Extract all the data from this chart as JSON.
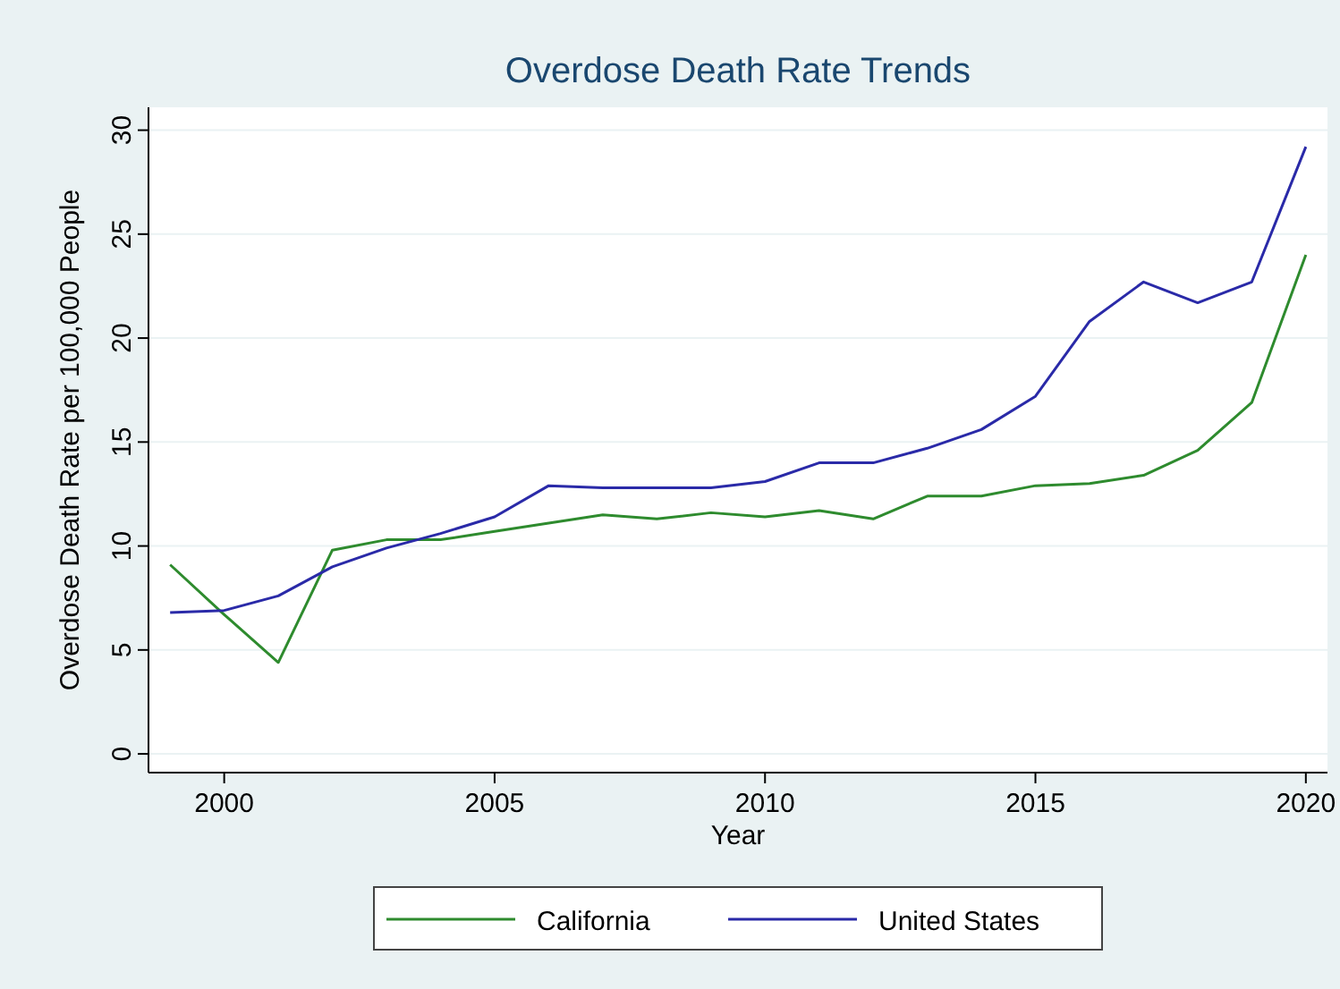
{
  "chart_data": {
    "type": "line",
    "title": "Overdose Death Rate Trends",
    "xlabel": "Year",
    "ylabel": "Overdose Death Rate per 100,000 People",
    "x": [
      1999,
      2000,
      2001,
      2002,
      2003,
      2004,
      2005,
      2006,
      2007,
      2008,
      2009,
      2010,
      2011,
      2012,
      2013,
      2014,
      2015,
      2016,
      2017,
      2018,
      2019,
      2020
    ],
    "series": [
      {
        "name": "California",
        "color": "#2e8b2e",
        "values": [
          9.1,
          6.7,
          4.4,
          9.8,
          10.3,
          10.3,
          10.7,
          11.1,
          11.5,
          11.3,
          11.6,
          11.4,
          11.7,
          11.3,
          12.4,
          12.4,
          12.9,
          13.0,
          13.4,
          14.6,
          16.9,
          24.0
        ]
      },
      {
        "name": "United States",
        "color": "#2a2aa8",
        "values": [
          6.8,
          6.9,
          7.6,
          9.0,
          9.9,
          10.6,
          11.4,
          12.9,
          12.8,
          12.8,
          12.8,
          13.1,
          14.0,
          14.0,
          14.7,
          15.6,
          17.2,
          20.8,
          22.7,
          21.7,
          22.7,
          29.2
        ]
      }
    ],
    "xlim": [
      1998.6,
      2020.4
    ],
    "xticks": [
      2000,
      2005,
      2010,
      2015,
      2020
    ],
    "ylim": [
      -0.9,
      31.1
    ],
    "yticks": [
      0,
      5,
      10,
      15,
      20,
      25,
      30
    ],
    "grid": "y",
    "legend": "bottom",
    "marker": "none",
    "line_style": "solid"
  }
}
